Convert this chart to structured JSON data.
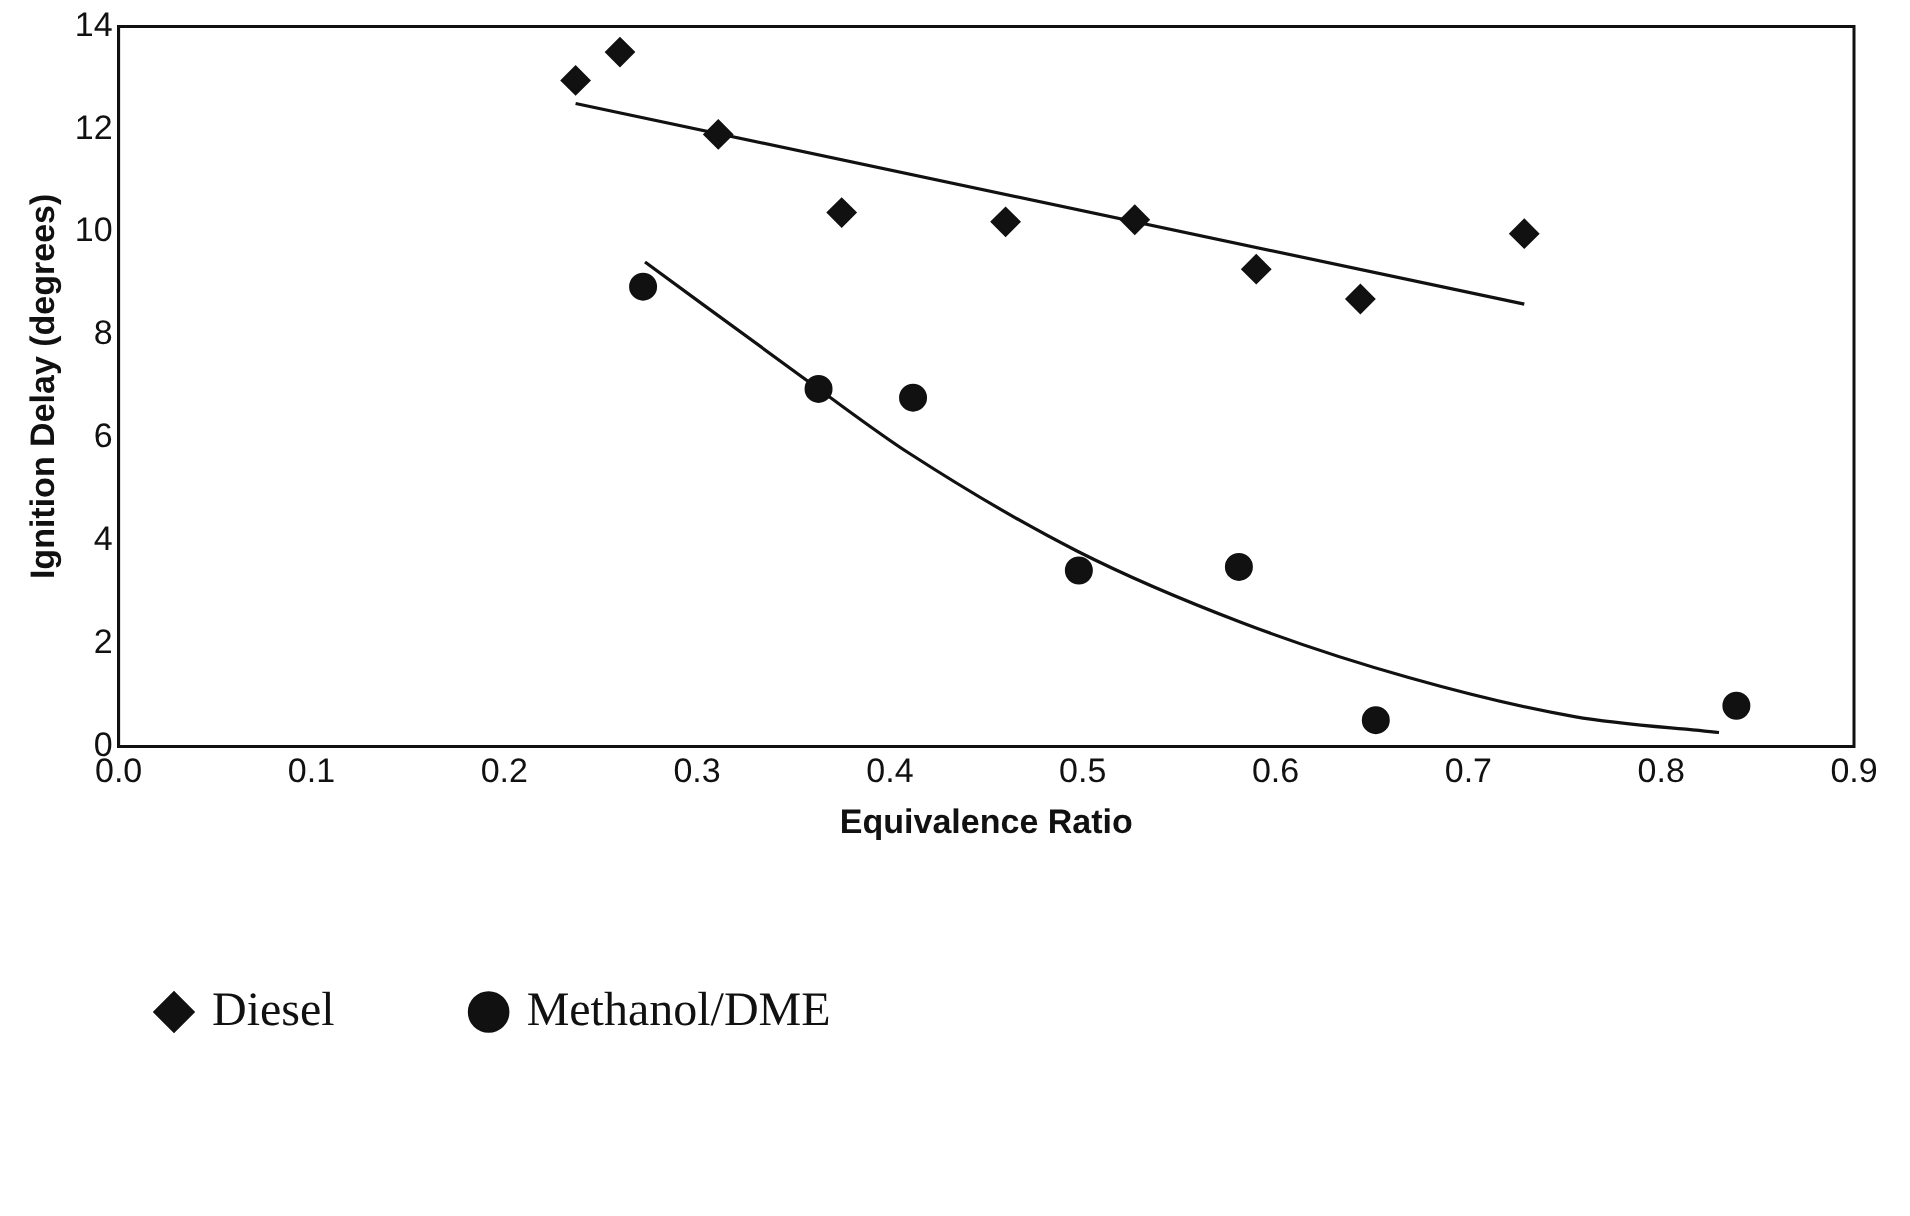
{
  "chart_data": {
    "type": "scatter",
    "xlabel": "Equivalence Ratio",
    "ylabel": "Ignition Delay (degrees)",
    "xlim": [
      0,
      0.9
    ],
    "xticks": [
      {
        "value": 0,
        "label": "0.0"
      },
      0.1,
      0.2,
      0.3,
      0.4,
      0.5,
      0.6,
      0.7,
      0.8,
      0.9
    ],
    "ylim": [
      0,
      14
    ],
    "yticks": [
      0,
      2,
      4,
      6,
      8,
      10,
      12,
      14
    ],
    "grid": false,
    "legend": "bottom left",
    "series": [
      {
        "name": "Diesel",
        "marker": "diamond",
        "color": "#111111",
        "x": [
          0.237,
          0.26,
          0.311,
          0.375,
          0.46,
          0.527,
          0.59,
          0.644,
          0.729
        ],
        "values": [
          12.95,
          13.5,
          11.9,
          10.38,
          10.2,
          10.24,
          9.28,
          8.7,
          9.97
        ]
      },
      {
        "name": "Methanol/DME",
        "marker": "circle",
        "color": "#111111",
        "x": [
          0.272,
          0.363,
          0.412,
          0.498,
          0.581,
          0.652,
          0.839
        ],
        "values": [
          8.94,
          6.95,
          6.78,
          3.42,
          3.49,
          0.51,
          0.79
        ]
      },
      {
        "type": "line",
        "marker": "none",
        "line_style": "solid",
        "color": "#111111",
        "x": [
          0.237,
          0.729
        ],
        "values": [
          12.5,
          8.6
        ]
      },
      {
        "type": "line",
        "marker": "none",
        "line_style": "solid",
        "color": "#111111",
        "x": [
          0.273,
          0.363,
          0.41,
          0.497,
          0.583,
          0.669,
          0.755,
          0.83
        ],
        "values": [
          9.42,
          6.95,
          5.7,
          3.8,
          2.4,
          1.34,
          0.58,
          0.27
        ]
      }
    ]
  }
}
